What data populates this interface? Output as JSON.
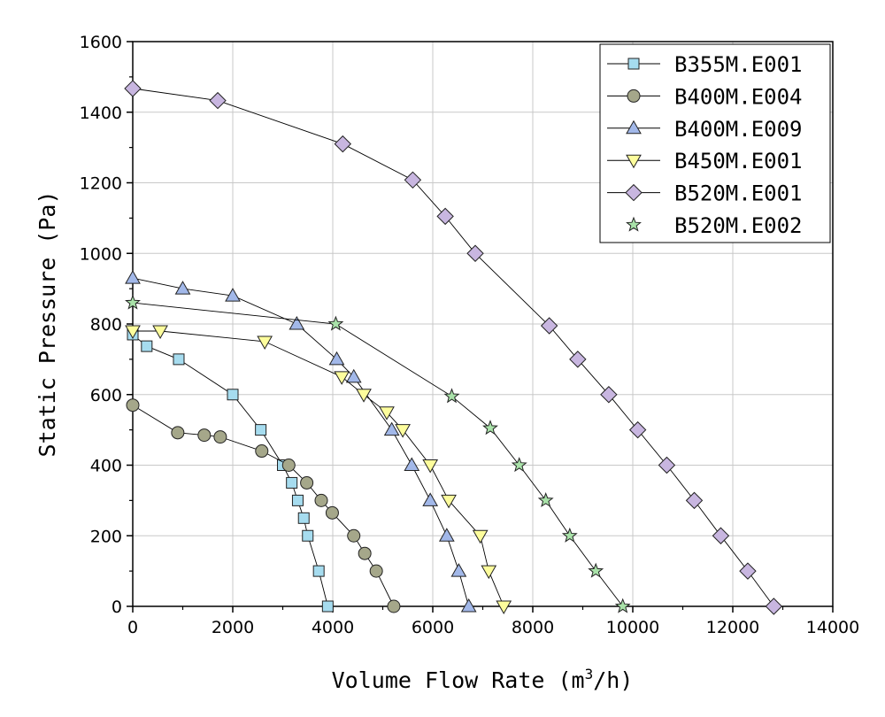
{
  "chart_data": {
    "type": "line",
    "title": "",
    "xlabel": "Volume Flow Rate (m",
    "xlabel_sup": "3",
    "xlabel_tail": "/h)",
    "ylabel": "Static Pressure (Pa)",
    "xlim": [
      0,
      14000
    ],
    "ylim": [
      0,
      1600
    ],
    "xticks": [
      0,
      2000,
      4000,
      6000,
      8000,
      10000,
      12000,
      14000
    ],
    "yticks": [
      0,
      200,
      400,
      600,
      800,
      1000,
      1200,
      1400,
      1600
    ],
    "grid": true,
    "legend_position": "top-right",
    "series": [
      {
        "name": "B355M.E001",
        "marker": "square",
        "color": "#a6dcef",
        "x": [
          0,
          280,
          920,
          2000,
          2560,
          3000,
          3180,
          3300,
          3420,
          3500,
          3720,
          3900
        ],
        "y": [
          770,
          737,
          700,
          600,
          500,
          400,
          350,
          300,
          250,
          200,
          100,
          0
        ]
      },
      {
        "name": "B400M.E004",
        "marker": "circle",
        "color": "#a5a78a",
        "x": [
          0,
          900,
          1430,
          1750,
          2580,
          3120,
          3480,
          3770,
          3990,
          4420,
          4640,
          4870,
          5220
        ],
        "y": [
          570,
          492,
          485,
          480,
          440,
          400,
          350,
          300,
          265,
          200,
          150,
          100,
          0
        ]
      },
      {
        "name": "B400M.E009",
        "marker": "triangle-up",
        "color": "#a2b8e9",
        "x": [
          0,
          1000,
          2000,
          3280,
          4080,
          4420,
          5180,
          5580,
          5950,
          6280,
          6520,
          6720
        ],
        "y": [
          930,
          900,
          880,
          800,
          700,
          650,
          500,
          400,
          300,
          200,
          100,
          0
        ]
      },
      {
        "name": "B450M.E001",
        "marker": "triangle-down",
        "color": "#fdfd9c",
        "x": [
          0,
          550,
          2640,
          4180,
          4620,
          5080,
          5400,
          5950,
          6320,
          6950,
          7120,
          7420
        ],
        "y": [
          780,
          780,
          750,
          650,
          600,
          550,
          500,
          400,
          300,
          200,
          100,
          0
        ]
      },
      {
        "name": "B520M.E001",
        "marker": "diamond",
        "color": "#c8b6e0",
        "x": [
          0,
          1700,
          4200,
          5600,
          6250,
          6850,
          8330,
          8900,
          9520,
          10100,
          10680,
          11230,
          11760,
          12300,
          12820
        ],
        "y": [
          1467,
          1433,
          1310,
          1208,
          1105,
          1000,
          795,
          700,
          600,
          500,
          400,
          300,
          200,
          100,
          0
        ]
      },
      {
        "name": "B520M.E002",
        "marker": "star",
        "color": "#a9e2a9",
        "x": [
          0,
          4060,
          6380,
          7150,
          7730,
          8260,
          8740,
          9260,
          9800
        ],
        "y": [
          860,
          800,
          595,
          505,
          400,
          300,
          200,
          100,
          0
        ]
      }
    ]
  }
}
